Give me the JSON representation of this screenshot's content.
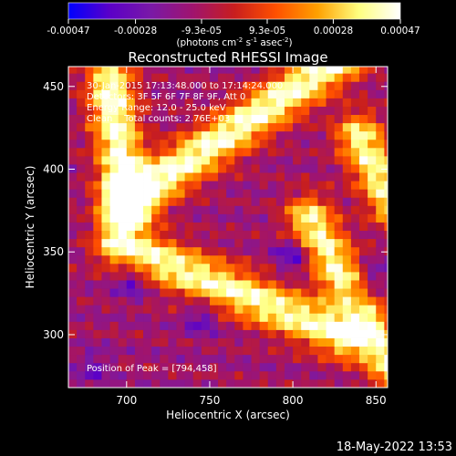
{
  "chart_data": {
    "type": "heatmap",
    "title": "Reconstructed RHESSI Image",
    "xlabel": "Heliocentric X (arcsec)",
    "ylabel": "Heliocentric Y (arcsec)",
    "xlim": [
      665,
      857
    ],
    "ylim": [
      268,
      462
    ],
    "x_ticks": [
      700,
      750,
      800,
      850
    ],
    "y_ticks": [
      300,
      350,
      400,
      450
    ],
    "colorbar": {
      "ticks": [
        "-0.00047",
        "-0.00028",
        "-9.3e-05",
        "9.3e-05",
        "0.00028",
        "0.00047"
      ],
      "tick_values": [
        -0.00047,
        -0.00028,
        -9.3e-05,
        9.3e-05,
        0.00028,
        0.00047
      ],
      "range": [
        -0.00047,
        0.00047
      ],
      "unit_parts": [
        "(photons cm",
        "-2",
        " s",
        "-1",
        " asec",
        "-2",
        ")"
      ],
      "colormap": [
        "#0000ff",
        "#5b00c8",
        "#7a19a6",
        "#a0146e",
        "#c81e1e",
        "#ff5000",
        "#ffa000",
        "#ffff80",
        "#ffffff"
      ]
    },
    "annotations": [
      "30-Jan-2015 17:13:48.000 to 17:14:24.000",
      "Detectors: 3F 5F 6F 7F 8F 9F, Att 0",
      "Energy Range: 12.0 - 25.0 keV",
      "Clean    Total counts: 2.76E+03"
    ],
    "peak_label": "Position of Peak = [794,458]",
    "peak": [
      794,
      458
    ],
    "bright_bands": [
      {
        "x": [
          690,
          700
        ],
        "y": [
          452,
          380
        ],
        "value": 0.00045
      },
      {
        "x": [
          700,
          830
        ],
        "y": [
          380,
          468
        ],
        "value": 0.00044
      },
      {
        "x": [
          695,
          830
        ],
        "y": [
          355,
          300
        ],
        "value": 0.00041
      },
      {
        "x": [
          810,
          860
        ],
        "y": [
          370,
          280
        ],
        "value": 0.0004
      },
      {
        "x": [
          840,
          860
        ],
        "y": [
          420,
          380
        ],
        "value": 0.00039
      }
    ],
    "dark_spots": [
      {
        "x": 703,
        "y": 332,
        "value": -0.00035
      },
      {
        "x": 745,
        "y": 310,
        "value": -0.00033
      },
      {
        "x": 800,
        "y": 348,
        "value": -0.0004
      },
      {
        "x": 848,
        "y": 335,
        "value": -0.00032
      },
      {
        "x": 838,
        "y": 318,
        "value": -0.0003
      },
      {
        "x": 680,
        "y": 280,
        "value": -0.00028
      }
    ]
  },
  "footer": {
    "date": "18-May-2022 13:53"
  }
}
